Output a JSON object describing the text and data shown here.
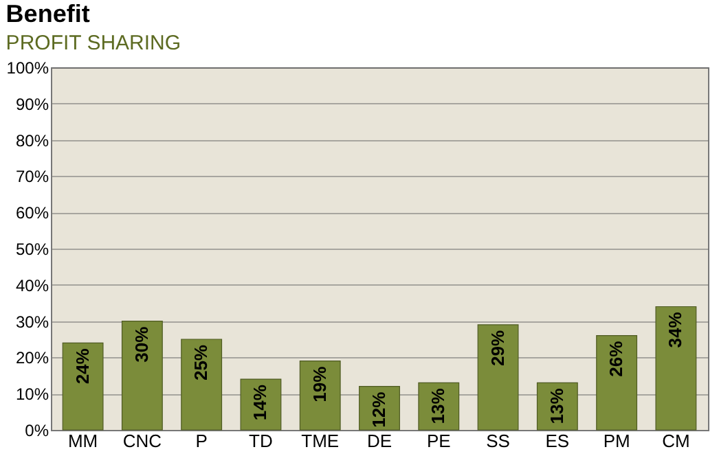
{
  "chart_data": {
    "type": "bar",
    "title": "Benefit",
    "subtitle": "PROFIT SHARING",
    "categories": [
      "MM",
      "CNC",
      "P",
      "TD",
      "TME",
      "DE",
      "PE",
      "SS",
      "ES",
      "PM",
      "CM"
    ],
    "values": [
      24,
      30,
      25,
      14,
      19,
      12,
      13,
      29,
      13,
      26,
      34
    ],
    "value_labels": [
      "24%",
      "30%",
      "25%",
      "14%",
      "19%",
      "12%",
      "13%",
      "29%",
      "13%",
      "26%",
      "34%"
    ],
    "color": "#7b8c3a",
    "ylim": [
      0,
      100
    ],
    "yticks": [
      {
        "value": 0,
        "label": "0%"
      },
      {
        "value": 10,
        "label": "10%"
      },
      {
        "value": 20,
        "label": "20%"
      },
      {
        "value": 30,
        "label": "30%"
      },
      {
        "value": 40,
        "label": "40%"
      },
      {
        "value": 50,
        "label": "50%"
      },
      {
        "value": 60,
        "label": "60%"
      },
      {
        "value": 70,
        "label": "70%"
      },
      {
        "value": 80,
        "label": "80%"
      },
      {
        "value": 90,
        "label": "90%"
      },
      {
        "value": 100,
        "label": "100%"
      }
    ],
    "grid": "y"
  }
}
